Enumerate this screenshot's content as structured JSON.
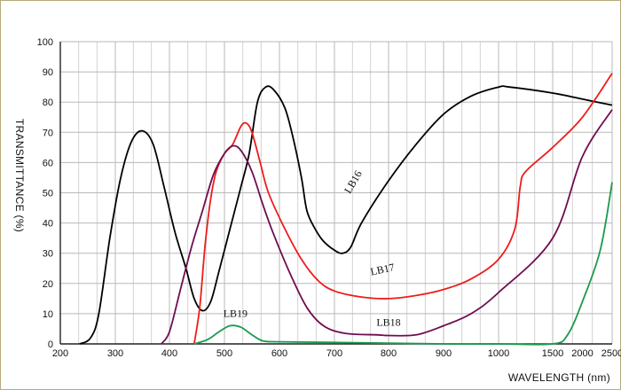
{
  "chart_data": {
    "type": "line",
    "xlabel": "WAVELENGTH (nm)",
    "ylabel": "TRANSMITTANCE   (%)",
    "x_ticks": [
      "200",
      "300",
      "400",
      "500",
      "600",
      "700",
      "800",
      "900",
      "1000",
      "1500",
      "2000",
      "2500"
    ],
    "y_ticks": [
      "0",
      "10",
      "20",
      "30",
      "40",
      "50",
      "60",
      "70",
      "80",
      "90",
      "100"
    ],
    "ylim": [
      0,
      100
    ],
    "xlim": [
      200,
      2500
    ],
    "grid": true,
    "series": [
      {
        "name": "LB16",
        "color": "#000000",
        "points": [
          [
            235,
            0
          ],
          [
            255,
            2
          ],
          [
            270,
            10
          ],
          [
            290,
            35
          ],
          [
            310,
            55
          ],
          [
            330,
            67
          ],
          [
            350,
            70.5
          ],
          [
            370,
            66
          ],
          [
            390,
            52
          ],
          [
            410,
            37
          ],
          [
            430,
            25
          ],
          [
            445,
            15
          ],
          [
            460,
            11
          ],
          [
            475,
            14
          ],
          [
            490,
            24
          ],
          [
            510,
            38
          ],
          [
            530,
            52
          ],
          [
            545,
            63
          ],
          [
            560,
            80
          ],
          [
            575,
            85
          ],
          [
            590,
            84
          ],
          [
            610,
            78
          ],
          [
            625,
            68
          ],
          [
            640,
            55
          ],
          [
            650,
            44
          ],
          [
            665,
            38
          ],
          [
            680,
            34
          ],
          [
            700,
            31
          ],
          [
            715,
            30
          ],
          [
            730,
            32
          ],
          [
            750,
            40
          ],
          [
            800,
            54
          ],
          [
            850,
            66
          ],
          [
            900,
            76
          ],
          [
            950,
            82
          ],
          [
            1000,
            85
          ],
          [
            1100,
            85
          ],
          [
            1500,
            83
          ],
          [
            2000,
            81
          ],
          [
            2500,
            79
          ]
        ]
      },
      {
        "name": "LB17",
        "color": "#ee1c1c",
        "points": [
          [
            445,
            0
          ],
          [
            455,
            12
          ],
          [
            465,
            33
          ],
          [
            475,
            48
          ],
          [
            485,
            57
          ],
          [
            500,
            63
          ],
          [
            515,
            66
          ],
          [
            530,
            72
          ],
          [
            540,
            73
          ],
          [
            550,
            70
          ],
          [
            565,
            60
          ],
          [
            580,
            50
          ],
          [
            610,
            38
          ],
          [
            640,
            28
          ],
          [
            670,
            21
          ],
          [
            700,
            17.5
          ],
          [
            750,
            15.5
          ],
          [
            800,
            15
          ],
          [
            850,
            16
          ],
          [
            900,
            18
          ],
          [
            950,
            21.5
          ],
          [
            1000,
            28
          ],
          [
            1150,
            38
          ],
          [
            1200,
            52
          ],
          [
            1250,
            57
          ],
          [
            1500,
            65
          ],
          [
            2000,
            75
          ],
          [
            2500,
            89.5
          ]
        ]
      },
      {
        "name": "LB18",
        "color": "#6e0e4e",
        "points": [
          [
            385,
            0
          ],
          [
            400,
            4
          ],
          [
            420,
            18
          ],
          [
            440,
            32
          ],
          [
            460,
            44
          ],
          [
            480,
            56
          ],
          [
            500,
            63
          ],
          [
            515,
            65.5
          ],
          [
            530,
            64
          ],
          [
            550,
            57
          ],
          [
            570,
            46
          ],
          [
            590,
            36
          ],
          [
            620,
            23
          ],
          [
            650,
            12
          ],
          [
            680,
            6
          ],
          [
            720,
            3.5
          ],
          [
            780,
            3
          ],
          [
            800,
            2.8
          ],
          [
            850,
            3
          ],
          [
            900,
            6
          ],
          [
            950,
            10
          ],
          [
            1000,
            17
          ],
          [
            1500,
            35
          ],
          [
            2000,
            62
          ],
          [
            2500,
            77.5
          ]
        ]
      },
      {
        "name": "LB19",
        "color": "#1a9a4e",
        "points": [
          [
            445,
            0
          ],
          [
            470,
            1.5
          ],
          [
            490,
            4
          ],
          [
            510,
            6
          ],
          [
            530,
            5.5
          ],
          [
            550,
            3
          ],
          [
            570,
            1
          ],
          [
            600,
            0.7
          ],
          [
            700,
            0.5
          ],
          [
            900,
            0
          ],
          [
            1000,
            0
          ],
          [
            1500,
            0
          ],
          [
            1750,
            3
          ],
          [
            2000,
            14
          ],
          [
            2300,
            31
          ],
          [
            2500,
            53.5
          ]
        ]
      }
    ],
    "annotations": [
      {
        "text": "LB16",
        "x": 740,
        "y": 53
      },
      {
        "text": "LB17",
        "x": 790,
        "y": 23.5
      },
      {
        "text": "LB18",
        "x": 800,
        "y": 6
      },
      {
        "text": "LB19",
        "x": 520,
        "y": 9
      }
    ]
  }
}
